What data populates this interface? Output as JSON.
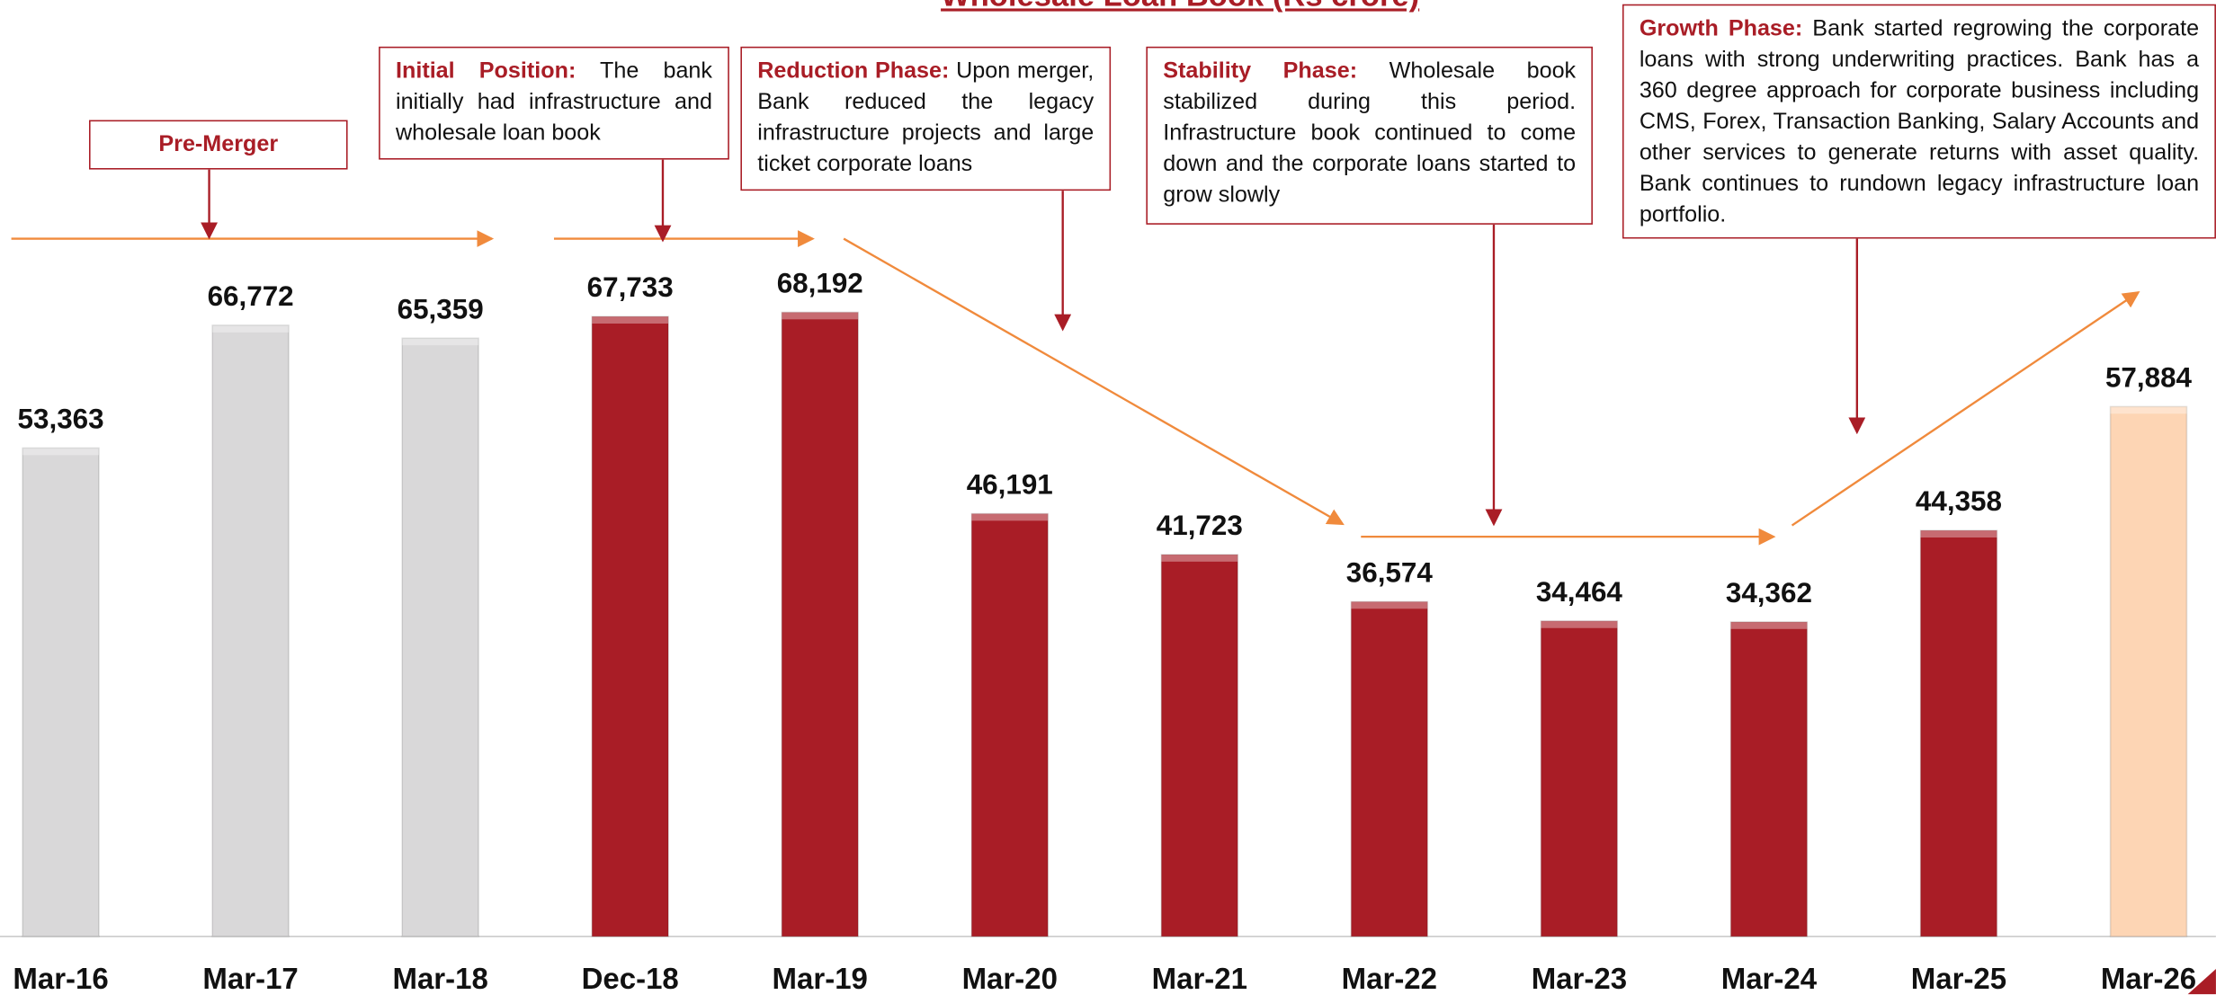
{
  "chart_data": {
    "type": "bar",
    "title": "Wholesale Loan Book (Rs crore)",
    "categories": [
      "Mar-16",
      "Mar-17",
      "Mar-18",
      "Dec-18",
      "Mar-19",
      "Mar-20",
      "Mar-21",
      "Mar-22",
      "Mar-23",
      "Mar-24",
      "Mar-25",
      "Mar-26"
    ],
    "values": [
      53363,
      66772,
      65359,
      67733,
      68192,
      46191,
      41723,
      36574,
      34464,
      34362,
      44358,
      57884
    ],
    "value_labels": [
      "53,363",
      "66,772",
      "65,359",
      "67,733",
      "68,192",
      "46,191",
      "41,723",
      "36,574",
      "34,464",
      "34,362",
      "44,358",
      "57,884"
    ],
    "colors": [
      "#d9d8d9",
      "#d9d8d9",
      "#d9d8d9",
      "#a91d26",
      "#a91d26",
      "#a91d26",
      "#a91d26",
      "#a91d26",
      "#a91d26",
      "#a91d26",
      "#a91d26",
      "#fdd5b4"
    ],
    "ylim": [
      0,
      100000
    ],
    "annotations": [
      {
        "heading": "Pre-Merger"
      },
      {
        "heading": "Initial Position:",
        "text": "The bank initially had infrastructure and wholesale loan book"
      },
      {
        "heading": "Reduction Phase:",
        "text": "Upon merger, Bank reduced the legacy infrastructure projects and large ticket corporate loans"
      },
      {
        "heading": "Stability Phase:",
        "text": "Wholesale book stabilized during this period. Infrastructure book continued to come down and the corporate loans started to grow slowly"
      },
      {
        "heading": "Growth Phase:",
        "text": "Bank started regrowing the corporate loans with strong underwriting practices. Bank has a 360 degree approach for corporate business including CMS, Forex, Transaction Banking, Salary Accounts and other services to generate returns with asset quality. Bank continues to rundown legacy infrastructure loan portfolio."
      }
    ]
  }
}
